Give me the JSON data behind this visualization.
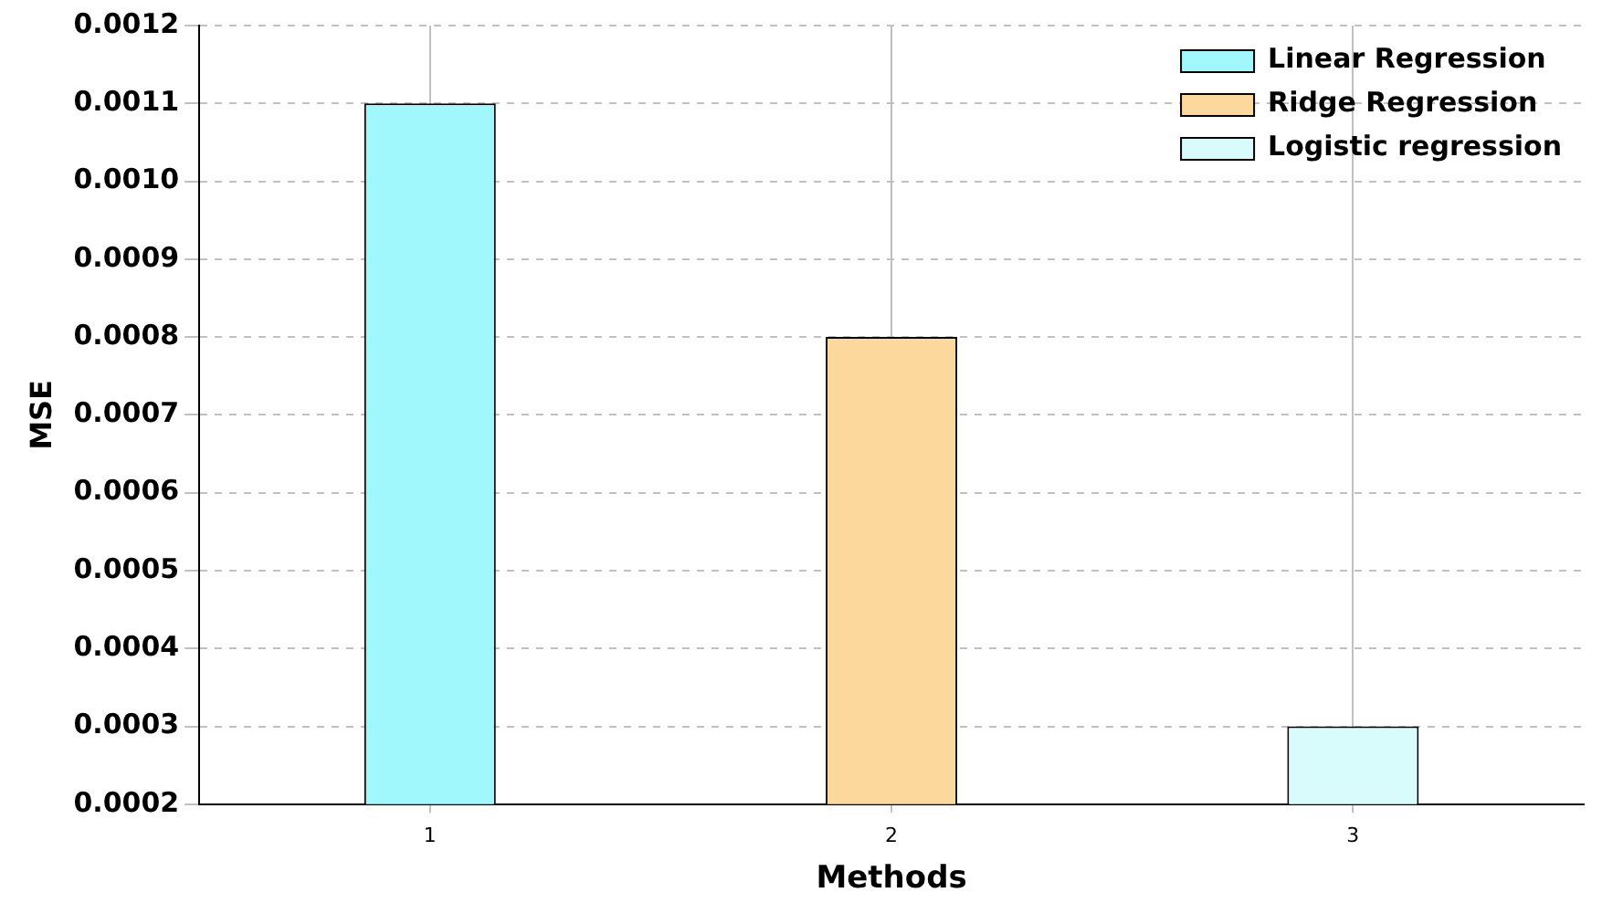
{
  "chart_data": {
    "type": "bar",
    "xlabel": "Methods",
    "ylabel": "MSE",
    "categories": [
      "1",
      "2",
      "3"
    ],
    "series": [
      {
        "name": "Linear Regression",
        "color": "#a0f8fc",
        "values": [
          0.0011,
          null,
          null
        ]
      },
      {
        "name": "Ridge Regression",
        "color": "#fcd89c",
        "values": [
          null,
          0.0008,
          null
        ]
      },
      {
        "name": "Logistic regression",
        "color": "#d8fcfc",
        "values": [
          null,
          null,
          0.0003
        ]
      }
    ],
    "ylim": [
      0.0002,
      0.0012
    ],
    "yticks": [
      0.0002,
      0.0003,
      0.0004,
      0.0005,
      0.0006,
      0.0007,
      0.0008,
      0.0009,
      {
        "value": 0.001,
        "label": "0.0010"
      },
      0.0011,
      0.0012
    ],
    "grid": true,
    "legend": "top right"
  }
}
